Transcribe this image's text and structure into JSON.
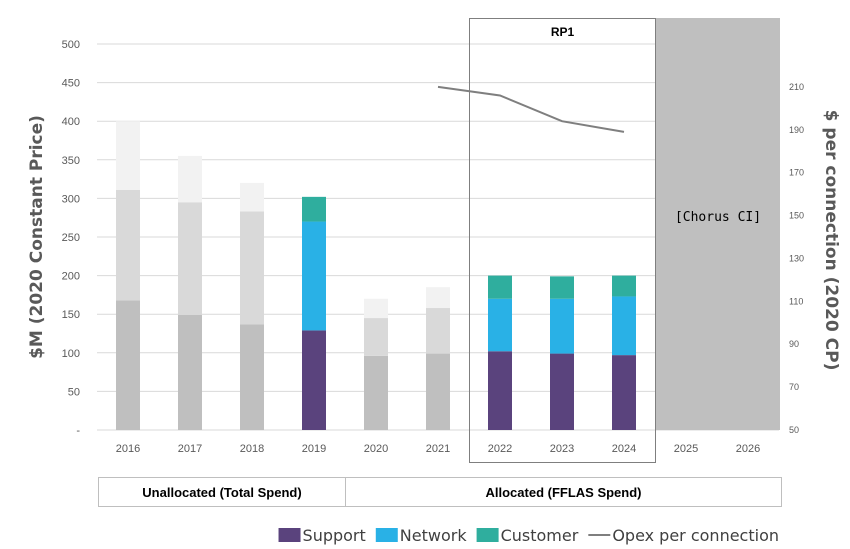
{
  "chart_data": {
    "type": "bar",
    "stacked": true,
    "categories": [
      "2016",
      "2017",
      "2018",
      "2019",
      "2020",
      "2021",
      "2022",
      "2023",
      "2024",
      "2025",
      "2026"
    ],
    "series": [
      {
        "name": "Support",
        "color": "#5a437d",
        "values": [
          null,
          null,
          null,
          129,
          null,
          null,
          102,
          99,
          97,
          null,
          null
        ]
      },
      {
        "name": "Network",
        "color": "#29b1e6",
        "values": [
          null,
          null,
          null,
          141,
          null,
          null,
          68,
          71,
          76,
          null,
          null
        ]
      },
      {
        "name": "Customer",
        "color": "#2fae9e",
        "values": [
          null,
          null,
          null,
          32,
          null,
          null,
          30,
          29,
          27,
          null,
          null
        ]
      }
    ],
    "unallocated_segments": {
      "colors": [
        "#bfbfbf",
        "#d9d9d9",
        "#f2f2f2"
      ],
      "values": [
        [
          168,
          143,
          89
        ],
        [
          149,
          146,
          60
        ],
        [
          137,
          146,
          37
        ],
        [
          null,
          null,
          null
        ],
        [
          96,
          49,
          25
        ],
        [
          99,
          59,
          27
        ],
        [
          null,
          null,
          null
        ],
        [
          null,
          null,
          null
        ],
        [
          null,
          null,
          null
        ],
        [
          null,
          null,
          null
        ],
        [
          null,
          null,
          null
        ]
      ]
    },
    "line": {
      "name": "Opex per connection",
      "axis": "right",
      "color": "#7f7f7f",
      "points": [
        [
          "2021",
          210
        ],
        [
          "2022",
          206
        ],
        [
          "2023",
          194
        ],
        [
          "2024",
          189
        ]
      ]
    },
    "y_left": {
      "label": "$M (2020 Constant Price)",
      "ylim": [
        0,
        500
      ],
      "ticks": [
        {
          "v": 0,
          "label": "-"
        },
        {
          "v": 50,
          "label": "50"
        },
        {
          "v": 100,
          "label": "100"
        },
        {
          "v": 150,
          "label": "150"
        },
        {
          "v": 200,
          "label": "200"
        },
        {
          "v": 250,
          "label": "250"
        },
        {
          "v": 300,
          "label": "300"
        },
        {
          "v": 350,
          "label": "350"
        },
        {
          "v": 400,
          "label": "400"
        },
        {
          "v": 450,
          "label": "450"
        },
        {
          "v": 500,
          "label": "500"
        }
      ]
    },
    "y_right": {
      "label": "$ per connection (2020 CP)",
      "ylim": [
        50,
        230
      ],
      "ticks": [
        50,
        70,
        90,
        110,
        130,
        150,
        170,
        190,
        210
      ]
    },
    "rp_box": {
      "label": "RP1",
      "from": "2022",
      "to": "2024"
    },
    "shaded": {
      "label": "[Chorus CI]",
      "from": "2025",
      "to": "2026",
      "color": "#bfbfbf"
    },
    "groups": [
      {
        "label": "Unallocated (Total Spend)",
        "from": "2016",
        "to": "2019"
      },
      {
        "label": "Allocated (FFLAS Spend)",
        "from": "2020",
        "to": "2026"
      }
    ],
    "legend": [
      {
        "label": "Support",
        "kind": "box",
        "color": "#5a437d"
      },
      {
        "label": "Network",
        "kind": "box",
        "color": "#29b1e6"
      },
      {
        "label": "Customer",
        "kind": "box",
        "color": "#2fae9e"
      },
      {
        "label": "Opex per connection",
        "kind": "line",
        "color": "#7f7f7f"
      }
    ],
    "legend_position": "bottom-right",
    "grid": true
  }
}
